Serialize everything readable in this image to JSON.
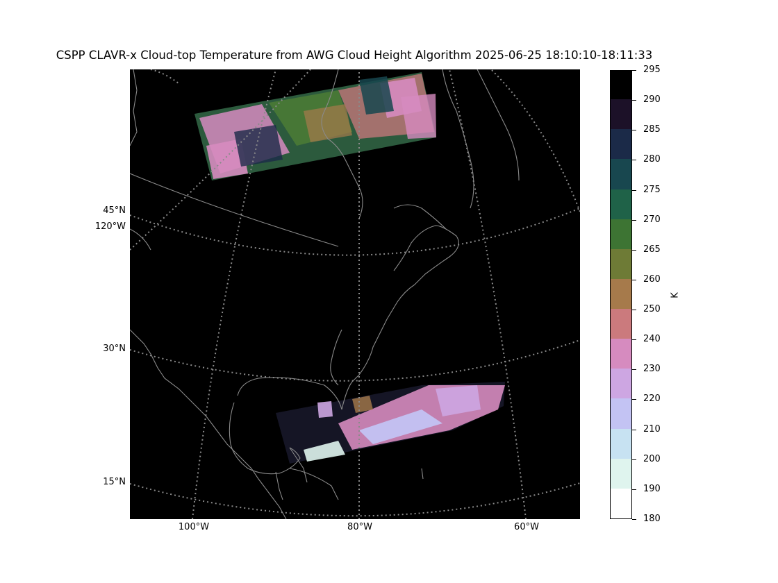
{
  "title": "CSPP CLAVR-x Cloud-top Temperature from AWG Cloud Height Algorithm 2025-06-25 18:10:10-18:11:33",
  "latitude_labels": [
    {
      "text": "45°N",
      "lat": 45
    },
    {
      "text": "30°N",
      "lat": 30
    },
    {
      "text": "15°N",
      "lat": 15
    }
  ],
  "longitude_labels_left": [
    {
      "text": "120°W",
      "lon": -120
    }
  ],
  "longitude_labels_bottom": [
    {
      "text": "100°W",
      "lon": -100
    },
    {
      "text": "80°W",
      "lon": -80
    },
    {
      "text": "60°W",
      "lon": -60
    }
  ],
  "colorbar": {
    "label": "K",
    "min": 180,
    "max": 295,
    "ticks": [
      "180",
      "190",
      "200",
      "210",
      "220",
      "230",
      "240",
      "250",
      "260",
      "265",
      "270",
      "275",
      "280",
      "285",
      "290",
      "295"
    ],
    "tick_values": [
      180,
      190,
      200,
      210,
      220,
      230,
      240,
      250,
      260,
      265,
      270,
      275,
      280,
      285,
      290,
      295
    ],
    "colors": [
      "#ffffff",
      "#dff4ee",
      "#c7e2f2",
      "#c3c3f3",
      "#cda6e2",
      "#d68bbf",
      "#cb7a7d",
      "#a67a4b",
      "#6e7b36",
      "#3d7433",
      "#1f6248",
      "#18474f",
      "#1b2a48",
      "#1c1128",
      "#000000"
    ]
  },
  "colors": {
    "map_background": "#000000",
    "coastlines": "#8a8a8a",
    "graticule": "#8a8a8a"
  }
}
